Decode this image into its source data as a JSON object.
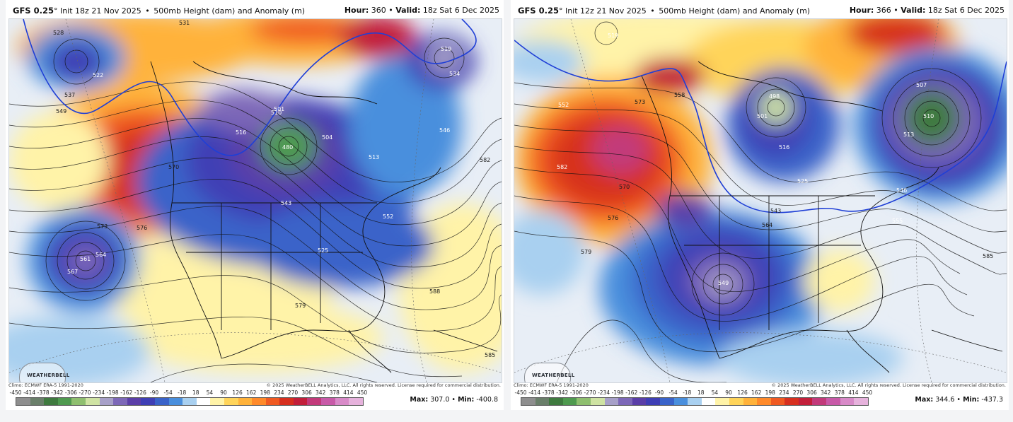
{
  "colorbar": {
    "labels": [
      "-450",
      "-414",
      "-378",
      "-342",
      "-306",
      "-270",
      "-234",
      "-198",
      "-162",
      "-126",
      "-90",
      "-54",
      "-18",
      "18",
      "54",
      "90",
      "126",
      "162",
      "198",
      "234",
      "270",
      "306",
      "342",
      "378",
      "414",
      "450"
    ],
    "colors": [
      "#8e8e8e",
      "#6a7f6a",
      "#3f7a3f",
      "#4f9a4f",
      "#8fbf6f",
      "#cfe3a3",
      "#a7a0c8",
      "#7d68b8",
      "#5b3fa8",
      "#3f3fb5",
      "#3a63c9",
      "#4a8fdd",
      "#a9d0f0",
      "#ffffff",
      "#fff3a8",
      "#ffd45a",
      "#ffb23a",
      "#ff8a2a",
      "#f05a22",
      "#d7301f",
      "#c21f3a",
      "#c23a7a",
      "#c85aa8",
      "#d88ac8",
      "#e6b2dc"
    ]
  },
  "panels": [
    {
      "model": "GFS 0.25",
      "deg": "°",
      "init": "Init 18z 21 Nov 2025",
      "product": "500mb Height (dam) and Anomaly (m)",
      "hour_label": "Hour:",
      "hour": "360",
      "valid_label": "Valid:",
      "valid": "18z Sat 6 Dec 2025",
      "climo": "Climo: ECMWF ERA-5 1991-2020",
      "copyright": "© 2025 WeatherBELL Analytics, LLC. All rights reserved. License required for commercial distribution.",
      "max_label": "Max:",
      "max": "307.0",
      "min_label": "Min:",
      "min": "-400.8",
      "logo": "WEATHERBELL",
      "contour_labels": [
        "528",
        "522",
        "537",
        "549",
        "531",
        "570",
        "576",
        "561",
        "564",
        "567",
        "573",
        "582",
        "579",
        "588",
        "585",
        "552",
        "546",
        "519",
        "516",
        "510",
        "501",
        "480",
        "504",
        "513",
        "543",
        "534",
        "525"
      ]
    },
    {
      "model": "GFS 0.25",
      "deg": "°",
      "init": "Init 12z 21 Nov 2025",
      "product": "500mb Height (dam) and Anomaly (m)",
      "hour_label": "Hour:",
      "hour": "366",
      "valid_label": "Valid:",
      "valid": "18z Sat 6 Dec 2025",
      "climo": "Climo: ECMWF ERA-5 1991-2020",
      "copyright": "© 2025 WeatherBELL Analytics, LLC. All rights reserved. License required for commercial distribution.",
      "max_label": "Max:",
      "max": "344.6",
      "min_label": "Min:",
      "min": "-437.3",
      "logo": "WEATHERBELL",
      "contour_labels": [
        "519",
        "558",
        "552",
        "570",
        "576",
        "579",
        "582",
        "543",
        "549",
        "555",
        "585",
        "507",
        "510",
        "525",
        "513",
        "516",
        "546",
        "501",
        "498",
        "573",
        "564"
      ]
    }
  ]
}
